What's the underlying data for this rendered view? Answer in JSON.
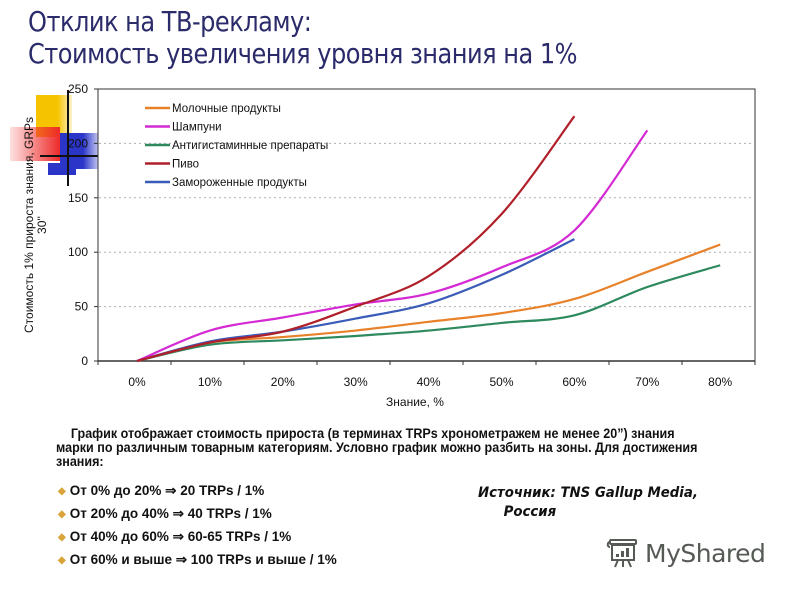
{
  "slide": {
    "title_line1": "Отклик на ТВ-рекламу:",
    "title_line2": "Стоимость увеличения уровня знания на 1%",
    "description": "График отображает стоимость прироста (в терминах TRPs хронометражем не менее 20”) знания марки по различным товарным категориям. Условно график можно разбить на зоны. Для достижения знания:",
    "bullets": [
      "От 0% до 20% ⇒ 20 TRPs / 1%",
      "От 20% до 40% ⇒ 40 TRPs / 1%",
      "От 40% до 60% ⇒ 60-65 TRPs / 1%",
      "От 60% и выше ⇒ 100 TRPs и выше / 1%"
    ],
    "bullet_icon": "diamond-bullet-icon",
    "source_line1": "Источник: TNS Gallup Media,",
    "source_line2": "Россия",
    "watermark": "MyShared",
    "watermark_icon": "presentation-board-icon"
  },
  "colors": {
    "title": "#2b2b6b",
    "bullet": "#d9a43a",
    "grid": "#b0b0b0",
    "deco_yellow": "#f6c300",
    "deco_red": "#ee2a2a",
    "deco_blue": "#2b36c9"
  },
  "chart_data": {
    "type": "line",
    "title": "",
    "xlabel": "Знание, %",
    "ylabel": "Стоимость 1% прироста знания, GRPs 30''",
    "ylabel_line1": "Стоимость 1% прироста знания, GRPs",
    "ylabel_line2": "30''",
    "ylim": [
      0,
      250
    ],
    "yticks": [
      "0",
      "50",
      "100",
      "150",
      "200",
      "250"
    ],
    "x": [
      "0%",
      "10%",
      "20%",
      "30%",
      "40%",
      "50%",
      "60%",
      "70%",
      "80%"
    ],
    "grid": "horizontal dotted",
    "legend_position": "upper-left inside",
    "series": [
      {
        "name": "Молочные продукты",
        "color": "#e8822a",
        "values": [
          0,
          17,
          22,
          28,
          36,
          44,
          57,
          82,
          107
        ]
      },
      {
        "name": "Шампуни",
        "color": "#d42ad4",
        "values": [
          0,
          28,
          40,
          52,
          62,
          86,
          120,
          212,
          null
        ]
      },
      {
        "name": "Антигистаминные препараты",
        "color": "#2e8a5e",
        "values": [
          0,
          15,
          19,
          23,
          28,
          35,
          42,
          68,
          88
        ]
      },
      {
        "name": "Пиво",
        "color": "#b0202a",
        "values": [
          0,
          17,
          27,
          50,
          78,
          135,
          225,
          null,
          null
        ]
      },
      {
        "name": "Замороженные продукты",
        "color": "#3a5cb8",
        "values": [
          0,
          18,
          27,
          39,
          53,
          79,
          112,
          null,
          null
        ]
      }
    ]
  }
}
